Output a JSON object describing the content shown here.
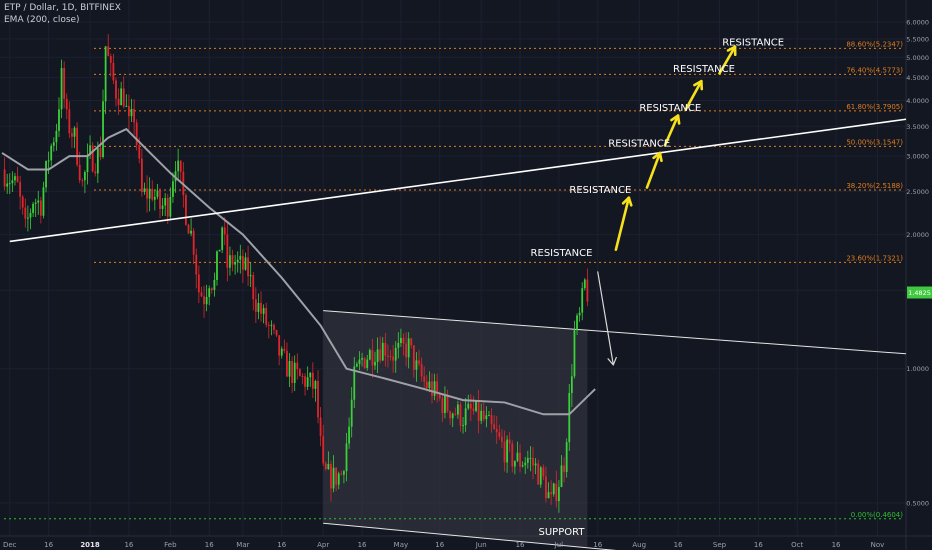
{
  "header": {
    "symbol": "ETP / Dollar, 1D, BITFINEX",
    "indicator": "EMA (200, close)"
  },
  "colors": {
    "background": "#131722",
    "up": "#3bd13b",
    "down": "#e0262b",
    "ema": "#9ea2a8",
    "fib": "#e07c1c",
    "support_line": "#2fbf2f",
    "trendline": "#ffffff",
    "arrows": "#f7e11c",
    "price_badge": "#3fc93f",
    "axis_text": "#9aa0ab",
    "channel_fill": "#3a3d45"
  },
  "chart_data": {
    "type": "candlestick",
    "y_axis": {
      "scale": "log",
      "range": [
        0.43,
        6.45
      ],
      "ticks": [
        6.0,
        5.5,
        5.0,
        4.5,
        4.0,
        3.5,
        3.0,
        2.5,
        2.0,
        1.5,
        1.0,
        0.5
      ],
      "tick_labels": [
        "6.0000",
        "5.5000",
        "5.0000",
        "4.5000",
        "4.0000",
        "3.5000",
        "3.0000",
        "2.5000",
        "2.0000",
        "1.5000",
        "1.0000",
        "0.5000"
      ]
    },
    "x_axis": {
      "range": [
        "2017-11-28",
        "2018-11-12"
      ],
      "ticks": [
        {
          "date": "2017-12-01",
          "label": "Dec",
          "bold": false
        },
        {
          "date": "2017-12-16",
          "label": "16",
          "bold": false
        },
        {
          "date": "2018-01-01",
          "label": "2018",
          "bold": true
        },
        {
          "date": "2018-01-16",
          "label": "16",
          "bold": false
        },
        {
          "date": "2018-02-01",
          "label": "Feb",
          "bold": false
        },
        {
          "date": "2018-02-16",
          "label": "16",
          "bold": false
        },
        {
          "date": "2018-03-01",
          "label": "Mar",
          "bold": false
        },
        {
          "date": "2018-03-16",
          "label": "16",
          "bold": false
        },
        {
          "date": "2018-04-01",
          "label": "Apr",
          "bold": false
        },
        {
          "date": "2018-04-16",
          "label": "16",
          "bold": false
        },
        {
          "date": "2018-05-01",
          "label": "May",
          "bold": false
        },
        {
          "date": "2018-05-16",
          "label": "16",
          "bold": false
        },
        {
          "date": "2018-06-01",
          "label": "Jun",
          "bold": false
        },
        {
          "date": "2018-06-16",
          "label": "16",
          "bold": false
        },
        {
          "date": "2018-07-01",
          "label": "Jul",
          "bold": false
        },
        {
          "date": "2018-07-16",
          "label": "16",
          "bold": false
        },
        {
          "date": "2018-08-01",
          "label": "Aug",
          "bold": false
        },
        {
          "date": "2018-08-16",
          "label": "16",
          "bold": false
        },
        {
          "date": "2018-09-01",
          "label": "Sep",
          "bold": false
        },
        {
          "date": "2018-09-16",
          "label": "16",
          "bold": false
        },
        {
          "date": "2018-10-01",
          "label": "Oct",
          "bold": false
        },
        {
          "date": "2018-10-16",
          "label": "16",
          "bold": false
        },
        {
          "date": "2018-11-01",
          "label": "Nov",
          "bold": false
        }
      ]
    },
    "price_path": [
      [
        "2017-11-28",
        2.8
      ],
      [
        "2017-12-04",
        2.55
      ],
      [
        "2017-12-07",
        2.05
      ],
      [
        "2017-12-10",
        2.4
      ],
      [
        "2017-12-13",
        2.35
      ],
      [
        "2017-12-16",
        3.0
      ],
      [
        "2017-12-19",
        3.5
      ],
      [
        "2017-12-21",
        4.5
      ],
      [
        "2017-12-23",
        3.6
      ],
      [
        "2017-12-26",
        3.3
      ],
      [
        "2017-12-29",
        2.6
      ],
      [
        "2018-01-01",
        3.0
      ],
      [
        "2018-01-03",
        2.95
      ],
      [
        "2018-01-05",
        3.1
      ],
      [
        "2018-01-07",
        5.3
      ],
      [
        "2018-01-09",
        4.6
      ],
      [
        "2018-01-11",
        4.2
      ],
      [
        "2018-01-14",
        4.1
      ],
      [
        "2018-01-16",
        3.5
      ],
      [
        "2018-01-18",
        3.7
      ],
      [
        "2018-01-21",
        2.45
      ],
      [
        "2018-01-25",
        2.5
      ],
      [
        "2018-01-28",
        2.3
      ],
      [
        "2018-01-31",
        2.35
      ],
      [
        "2018-02-03",
        2.95
      ],
      [
        "2018-02-05",
        2.6
      ],
      [
        "2018-02-07",
        2.25
      ],
      [
        "2018-02-10",
        1.9
      ],
      [
        "2018-02-12",
        1.5
      ],
      [
        "2018-02-14",
        1.45
      ],
      [
        "2018-02-16",
        1.6
      ],
      [
        "2018-02-18",
        1.55
      ],
      [
        "2018-02-21",
        2.1
      ],
      [
        "2018-02-23",
        1.7
      ],
      [
        "2018-02-25",
        1.75
      ],
      [
        "2018-02-28",
        1.7
      ],
      [
        "2018-03-03",
        1.65
      ],
      [
        "2018-03-06",
        1.42
      ],
      [
        "2018-03-09",
        1.3
      ],
      [
        "2018-03-12",
        1.2
      ],
      [
        "2018-03-16",
        1.05
      ],
      [
        "2018-03-20",
        0.98
      ],
      [
        "2018-03-23",
        0.95
      ],
      [
        "2018-03-26",
        0.94
      ],
      [
        "2018-03-29",
        0.9
      ],
      [
        "2018-04-01",
        0.58
      ],
      [
        "2018-04-05",
        0.57
      ],
      [
        "2018-04-08",
        0.58
      ],
      [
        "2018-04-11",
        0.74
      ],
      [
        "2018-04-13",
        0.95
      ],
      [
        "2018-04-16",
        1.05
      ],
      [
        "2018-04-19",
        1.08
      ],
      [
        "2018-04-22",
        1.12
      ],
      [
        "2018-04-25",
        1.12
      ],
      [
        "2018-04-28",
        1.08
      ],
      [
        "2018-05-01",
        1.1
      ],
      [
        "2018-05-04",
        1.12
      ],
      [
        "2018-05-07",
        1.0
      ],
      [
        "2018-05-10",
        0.93
      ],
      [
        "2018-05-13",
        0.9
      ],
      [
        "2018-05-16",
        0.85
      ],
      [
        "2018-05-19",
        0.82
      ],
      [
        "2018-05-22",
        0.8
      ],
      [
        "2018-05-25",
        0.78
      ],
      [
        "2018-05-28",
        0.8
      ],
      [
        "2018-06-01",
        0.78
      ],
      [
        "2018-06-04",
        0.74
      ],
      [
        "2018-06-07",
        0.7
      ],
      [
        "2018-06-10",
        0.66
      ],
      [
        "2018-06-13",
        0.63
      ],
      [
        "2018-06-16",
        0.62
      ],
      [
        "2018-06-19",
        0.63
      ],
      [
        "2018-06-22",
        0.6
      ],
      [
        "2018-06-25",
        0.56
      ],
      [
        "2018-06-28",
        0.5
      ],
      [
        "2018-07-01",
        0.56
      ],
      [
        "2018-07-03",
        0.62
      ],
      [
        "2018-07-05",
        0.85
      ],
      [
        "2018-07-07",
        1.2
      ],
      [
        "2018-07-09",
        1.3
      ],
      [
        "2018-07-11",
        1.55
      ],
      [
        "2018-07-12",
        1.48
      ]
    ],
    "ema": [
      [
        "2017-11-28",
        3.05
      ],
      [
        "2017-12-08",
        2.8
      ],
      [
        "2017-12-16",
        2.8
      ],
      [
        "2017-12-24",
        3.0
      ],
      [
        "2017-12-31",
        3.0
      ],
      [
        "2018-01-08",
        3.3
      ],
      [
        "2018-01-15",
        3.45
      ],
      [
        "2018-01-23",
        3.1
      ],
      [
        "2018-02-01",
        2.75
      ],
      [
        "2018-02-16",
        2.3
      ],
      [
        "2018-03-01",
        2.0
      ],
      [
        "2018-03-16",
        1.6
      ],
      [
        "2018-03-31",
        1.25
      ],
      [
        "2018-04-10",
        1.0
      ],
      [
        "2018-04-25",
        0.95
      ],
      [
        "2018-05-10",
        0.9
      ],
      [
        "2018-05-25",
        0.85
      ],
      [
        "2018-06-10",
        0.84
      ],
      [
        "2018-06-25",
        0.79
      ],
      [
        "2018-07-05",
        0.79
      ],
      [
        "2018-07-15",
        0.9
      ]
    ],
    "fib_levels": [
      {
        "value": 0.4604,
        "label": "0.00%(0.4604)",
        "line": "dotted-green"
      },
      {
        "value": 1.7321,
        "label": "23.60%(1.7321)",
        "line": "dotted-orange"
      },
      {
        "value": 2.5188,
        "label": "38.20%(2.5188)",
        "line": "dotted-orange"
      },
      {
        "value": 3.1547,
        "label": "50.00%(3.1547)",
        "line": "dotted-orange"
      },
      {
        "value": 3.7905,
        "label": "61.80%(3.7905)",
        "line": "dotted-orange"
      },
      {
        "value": 4.5773,
        "label": "76.40%(4.5773)",
        "line": "dotted-orange"
      },
      {
        "value": 5.2347,
        "label": "88.60%(5.2347)",
        "line": "dotted-orange"
      }
    ],
    "trendline": {
      "from": [
        "2017-12-01",
        1.93
      ],
      "to": [
        "2018-11-12",
        3.63
      ]
    },
    "channel": {
      "upper": {
        "from": [
          "2018-04-01",
          1.35
        ],
        "to": [
          "2018-11-12",
          1.08
        ]
      },
      "lower": {
        "from": [
          "2018-04-01",
          0.45
        ],
        "to": [
          "2018-11-12",
          0.34
        ]
      },
      "shaded_until": "2018-07-12"
    },
    "down_arrow": {
      "from": [
        "2018-07-16",
        1.65
      ],
      "to": [
        "2018-07-22",
        1.02
      ]
    },
    "up_arrows": [
      {
        "from": [
          "2018-07-23",
          1.85
        ],
        "to": [
          "2018-07-28",
          2.42
        ]
      },
      {
        "from": [
          "2018-08-04",
          2.55
        ],
        "to": [
          "2018-08-09",
          3.05
        ]
      },
      {
        "from": [
          "2018-08-11",
          3.18
        ],
        "to": [
          "2018-08-16",
          3.7
        ]
      },
      {
        "from": [
          "2018-08-19",
          3.82
        ],
        "to": [
          "2018-08-25",
          4.42
        ]
      },
      {
        "from": [
          "2018-09-01",
          4.6
        ],
        "to": [
          "2018-09-07",
          5.28
        ]
      }
    ],
    "annotations": [
      {
        "text": "RESISTANCE",
        "at": [
          "2018-07-02",
          1.82
        ]
      },
      {
        "text": "RESISTANCE",
        "at": [
          "2018-07-17",
          2.52
        ]
      },
      {
        "text": "RESISTANCE",
        "at": [
          "2018-08-01",
          3.2
        ]
      },
      {
        "text": "RESISTANCE",
        "at": [
          "2018-08-13",
          3.85
        ]
      },
      {
        "text": "RESISTANCE",
        "at": [
          "2018-08-26",
          4.7
        ]
      },
      {
        "text": "RESISTANCE",
        "at": [
          "2018-09-14",
          5.4
        ]
      },
      {
        "text": "SUPPORT",
        "at": [
          "2018-07-02",
          0.43
        ]
      }
    ],
    "last_price": {
      "value": 1.4825,
      "label": "1.4825"
    }
  }
}
